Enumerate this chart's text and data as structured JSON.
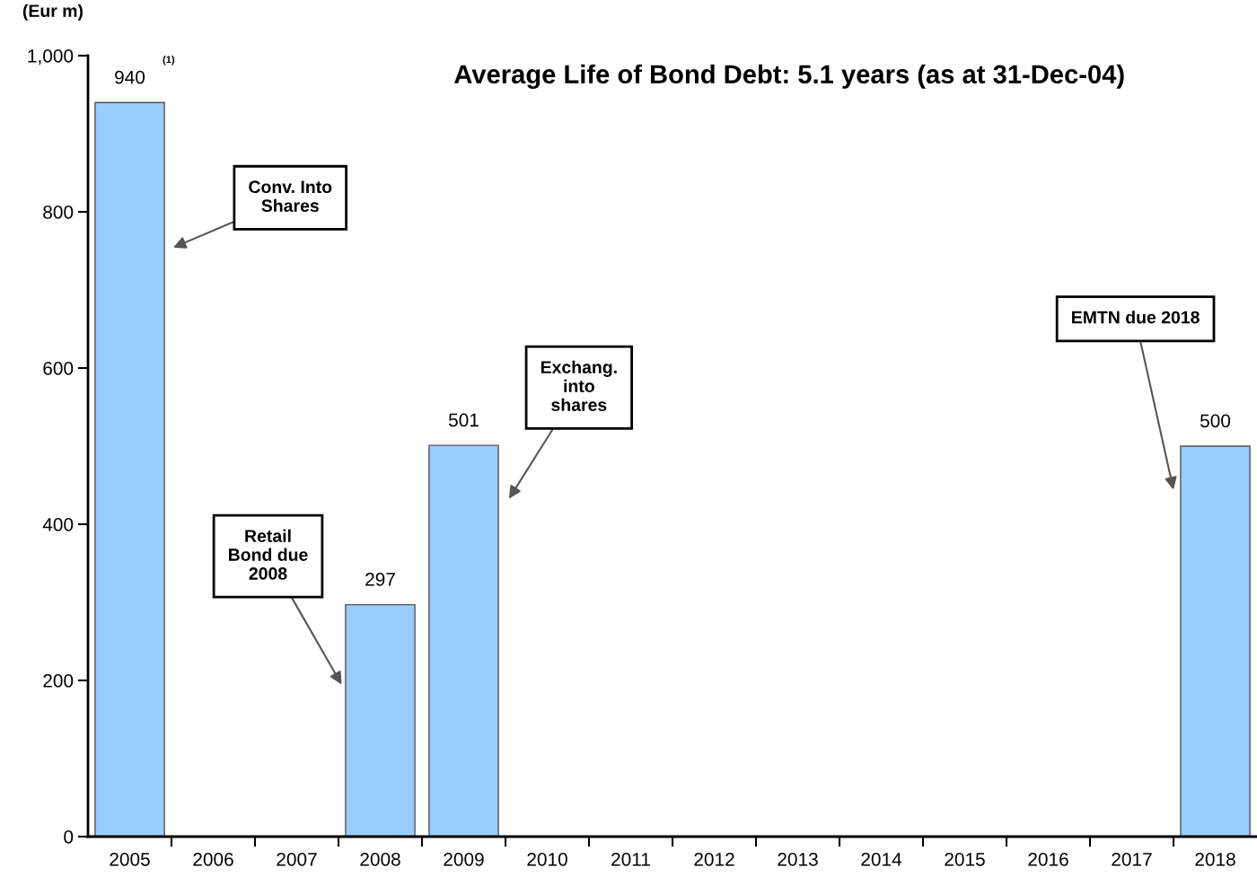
{
  "chart_data": {
    "type": "bar",
    "title": "Average Life of Bond Debt: 5.1 years (as at 31-Dec-04)",
    "ylabel": "(Eur m)",
    "categories": [
      "2005",
      "2006",
      "2007",
      "2008",
      "2009",
      "2010",
      "2011",
      "2012",
      "2013",
      "2014",
      "2015",
      "2016",
      "2017",
      "2018"
    ],
    "values": [
      940,
      0,
      0,
      297,
      501,
      0,
      0,
      0,
      0,
      0,
      0,
      0,
      0,
      500
    ],
    "value_labels": [
      "940",
      null,
      null,
      "297",
      "501",
      null,
      null,
      null,
      null,
      null,
      null,
      null,
      null,
      "500"
    ],
    "color": "#99ccff",
    "ylim": [
      0,
      1000
    ],
    "yticks": [
      0,
      200,
      400,
      600,
      800,
      {
        "value": 1000,
        "label": "1,000"
      }
    ],
    "grid": false,
    "legend": false,
    "annotations": [
      "(1)",
      "Conv. Into\nShares",
      "Retail\nBond due\n2008",
      "Exchang.\ninto\nshares",
      "EMTN due 2018"
    ]
  }
}
